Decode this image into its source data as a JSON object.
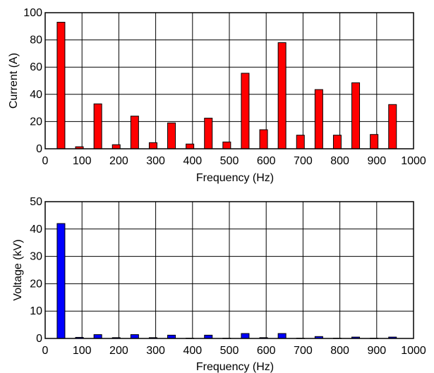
{
  "chart_data": [
    {
      "type": "bar",
      "xlabel": "Frequency (Hz)",
      "ylabel": "Current (A)",
      "xlim": [
        0,
        1000
      ],
      "ylim": [
        0,
        100
      ],
      "xticks": [
        0,
        100,
        200,
        300,
        400,
        500,
        600,
        700,
        800,
        900,
        1000
      ],
      "yticks": [
        0,
        20,
        40,
        60,
        80,
        100
      ],
      "grid": true,
      "bar_color": "#ff0000",
      "x": [
        50,
        100,
        150,
        200,
        250,
        300,
        350,
        400,
        450,
        500,
        550,
        600,
        650,
        700,
        750,
        800,
        850,
        900,
        950
      ],
      "values": [
        93,
        1.5,
        33,
        3,
        24,
        4.5,
        19,
        3.5,
        22.5,
        5,
        55.5,
        14,
        78,
        10,
        43.5,
        10,
        48.5,
        10.5,
        32.5
      ]
    },
    {
      "type": "bar",
      "xlabel": "Frequency (Hz)",
      "ylabel": "Voltage (kV)",
      "xlim": [
        0,
        1000
      ],
      "ylim": [
        0,
        50
      ],
      "xticks": [
        0,
        100,
        200,
        300,
        400,
        500,
        600,
        700,
        800,
        900,
        1000
      ],
      "yticks": [
        0,
        10,
        20,
        30,
        40,
        50
      ],
      "grid": true,
      "bar_color": "#0000ff",
      "x": [
        50,
        100,
        150,
        200,
        250,
        300,
        350,
        400,
        450,
        500,
        550,
        600,
        650,
        700,
        750,
        800,
        850,
        900,
        950
      ],
      "values": [
        42,
        0.4,
        1.4,
        0.3,
        1.4,
        0.3,
        1.2,
        0.1,
        1.2,
        0.1,
        1.8,
        0.3,
        1.8,
        0.1,
        0.7,
        0.1,
        0.5,
        0.1,
        0.5
      ]
    }
  ]
}
